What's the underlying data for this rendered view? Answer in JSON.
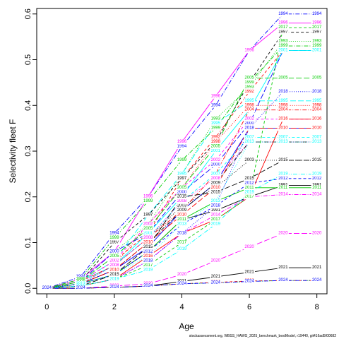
{
  "chart_data": {
    "type": "line",
    "title": "",
    "xlabel": "Age",
    "ylabel": "Selectivity fleet F",
    "xlim": [
      -0.3,
      8.3
    ],
    "ylim": [
      -0.012,
      0.612
    ],
    "xticks": [
      0,
      2,
      4,
      6,
      8
    ],
    "yticks": [
      0.0,
      0.1,
      0.2,
      0.3,
      0.4,
      0.5,
      0.6
    ],
    "ytick_labels": [
      "0.0",
      "0.1",
      "0.2",
      "0.3",
      "0.4",
      "0.5",
      "0.6"
    ],
    "caption": "stockassessment.org, WBSS_HAWG_2025_benchmark_bestModel, r19440, git416ad5f00682",
    "x": [
      0,
      1,
      2,
      3,
      4,
      5,
      6,
      7,
      8
    ],
    "series": [
      {
        "label": "1991",
        "color": "#000000",
        "dash": "",
        "values": [
          0.0,
          0.01,
          0.03,
          0.08,
          0.15,
          0.17,
          0.2,
          0.225,
          0.225
        ]
      },
      {
        "label": "1992",
        "color": "#ff0000",
        "dash": "4,3",
        "values": [
          0.0,
          0.015,
          0.06,
          0.12,
          0.24,
          0.33,
          0.43,
          0.52,
          0.52
        ]
      },
      {
        "label": "1993",
        "color": "#00cc00",
        "dash": "1,2",
        "values": [
          0.0,
          0.02,
          0.08,
          0.14,
          0.25,
          0.37,
          0.44,
          0.54,
          0.54
        ]
      },
      {
        "label": "1994",
        "color": "#0000ff",
        "dash": "6,2,1,2",
        "values": [
          0.0,
          0.025,
          0.12,
          0.2,
          0.31,
          0.4,
          0.52,
          0.6,
          0.6
        ]
      },
      {
        "label": "1995",
        "color": "#00ffff",
        "dash": "8,3",
        "values": [
          0.0,
          0.015,
          0.06,
          0.16,
          0.25,
          0.36,
          0.41,
          0.41,
          0.41
        ]
      },
      {
        "label": "1996",
        "color": "#ff00ff",
        "dash": "",
        "values": [
          0.0,
          0.02,
          0.08,
          0.2,
          0.32,
          0.42,
          0.52,
          0.58,
          0.58
        ]
      },
      {
        "label": "1997",
        "color": "#000000",
        "dash": "4,3",
        "values": [
          0.0,
          0.015,
          0.1,
          0.16,
          0.24,
          0.32,
          0.45,
          0.56,
          0.56
        ]
      },
      {
        "label": "1998",
        "color": "#ff0000",
        "dash": "1,2",
        "values": [
          0.0,
          0.015,
          0.05,
          0.14,
          0.22,
          0.32,
          0.4,
          0.4,
          0.4
        ]
      },
      {
        "label": "1999",
        "color": "#00cc00",
        "dash": "6,2,1,2",
        "values": [
          0.0,
          0.02,
          0.11,
          0.19,
          0.28,
          0.35,
          0.45,
          0.53,
          0.53
        ]
      },
      {
        "label": "2000",
        "color": "#0000ff",
        "dash": "8,3",
        "values": [
          0.0,
          0.015,
          0.08,
          0.12,
          0.21,
          0.27,
          0.36,
          0.52,
          0.52
        ]
      },
      {
        "label": "2001",
        "color": "#00ffff",
        "dash": "",
        "values": [
          0.0,
          0.015,
          0.05,
          0.12,
          0.2,
          0.3,
          0.39,
          0.52,
          0.52
        ]
      },
      {
        "label": "2002",
        "color": "#ff00ff",
        "dash": "4,3",
        "values": [
          0.0,
          0.015,
          0.06,
          0.14,
          0.22,
          0.28,
          0.37,
          0.37,
          0.37
        ]
      },
      {
        "label": "2003",
        "color": "#000000",
        "dash": "1,2",
        "values": [
          0.0,
          0.01,
          0.05,
          0.11,
          0.18,
          0.22,
          0.28,
          0.28,
          0.28
        ]
      },
      {
        "label": "2004",
        "color": "#ff0000",
        "dash": "6,2,1,2",
        "values": [
          0.0,
          0.015,
          0.05,
          0.11,
          0.17,
          0.25,
          0.39,
          0.39,
          0.39
        ]
      },
      {
        "label": "2005",
        "color": "#00cc00",
        "dash": "8,3",
        "values": [
          0.0,
          0.015,
          0.07,
          0.13,
          0.22,
          0.31,
          0.46,
          0.46,
          0.46
        ]
      },
      {
        "label": "2006",
        "color": "#0000ff",
        "dash": "",
        "values": [
          0.0,
          0.01,
          0.04,
          0.09,
          0.17,
          0.23,
          0.35,
          0.35,
          0.35
        ]
      },
      {
        "label": "2007",
        "color": "#00ffff",
        "dash": "4,3",
        "values": [
          0.0,
          0.01,
          0.05,
          0.11,
          0.19,
          0.25,
          0.33,
          0.33,
          0.33
        ]
      },
      {
        "label": "2008",
        "color": "#ff00ff",
        "dash": "1,2",
        "values": [
          0.0,
          0.01,
          0.05,
          0.11,
          0.19,
          0.24,
          0.32,
          0.32,
          0.32
        ]
      },
      {
        "label": "2009",
        "color": "#000000",
        "dash": "6,2,1,2",
        "values": [
          0.0,
          0.01,
          0.04,
          0.1,
          0.17,
          0.23,
          0.32,
          0.32,
          0.32
        ]
      },
      {
        "label": "2010",
        "color": "#ff0000",
        "dash": "8,3",
        "values": [
          0.0,
          0.01,
          0.04,
          0.1,
          0.16,
          0.22,
          0.35,
          0.35,
          0.35
        ]
      },
      {
        "label": "2011",
        "color": "#00cc00",
        "dash": "",
        "values": [
          0.0,
          0.01,
          0.03,
          0.08,
          0.15,
          0.19,
          0.22,
          0.22,
          0.22
        ]
      },
      {
        "label": "2012",
        "color": "#0000ff",
        "dash": "4,3",
        "values": [
          0.0,
          0.01,
          0.03,
          0.08,
          0.14,
          0.18,
          0.23,
          0.24,
          0.24
        ]
      },
      {
        "label": "2013",
        "color": "#00ffff",
        "dash": "1,2",
        "values": [
          0.0,
          0.01,
          0.03,
          0.07,
          0.14,
          0.19,
          0.32,
          0.32,
          0.32
        ]
      },
      {
        "label": "2014",
        "color": "#ff00ff",
        "dash": "6,2,1,2",
        "values": [
          0.0,
          0.005,
          0.02,
          0.06,
          0.12,
          0.16,
          0.2,
          0.205,
          0.205
        ]
      },
      {
        "label": "2015",
        "color": "#000000",
        "dash": "8,3",
        "values": [
          0.0,
          0.005,
          0.03,
          0.09,
          0.2,
          0.21,
          0.24,
          0.28,
          0.28
        ]
      },
      {
        "label": "2016",
        "color": "#ff0000",
        "dash": "",
        "values": [
          0.0,
          0.005,
          0.02,
          0.07,
          0.12,
          0.15,
          0.2,
          0.37,
          0.37
        ]
      },
      {
        "label": "2017",
        "color": "#00cc00",
        "dash": "4,3",
        "values": [
          0.0,
          0.005,
          0.02,
          0.05,
          0.1,
          0.15,
          0.2,
          0.57,
          0.57
        ]
      },
      {
        "label": "2018",
        "color": "#0000ff",
        "dash": "1,2",
        "values": [
          0.0,
          0.005,
          0.02,
          0.06,
          0.12,
          0.18,
          0.35,
          0.43,
          0.43
        ]
      },
      {
        "label": "2019",
        "color": "#00ffff",
        "dash": "6,2,1,2",
        "values": [
          0.0,
          0.005,
          0.02,
          0.04,
          0.085,
          0.14,
          0.21,
          0.25,
          0.25
        ]
      },
      {
        "label": "2020",
        "color": "#ff00ff",
        "dash": "8,3",
        "values": [
          0.0,
          0.0,
          0.005,
          0.01,
          0.03,
          0.06,
          0.09,
          0.12,
          0.12
        ]
      },
      {
        "label": "2021",
        "color": "#000000",
        "dash": "",
        "values": [
          0.0,
          0.0,
          0.002,
          0.005,
          0.015,
          0.025,
          0.035,
          0.045,
          0.045
        ]
      },
      {
        "label": "2022",
        "color": "#ff0000",
        "dash": "4,3",
        "values": [
          0.0,
          0.0,
          0.002,
          0.005,
          0.01,
          0.013,
          0.016,
          0.017,
          0.017
        ]
      },
      {
        "label": "2023",
        "color": "#00cc00",
        "dash": "1,2",
        "values": [
          0.0,
          0.0,
          0.002,
          0.005,
          0.01,
          0.012,
          0.015,
          0.017,
          0.017
        ]
      },
      {
        "label": "2024",
        "color": "#0000ff",
        "dash": "6,2,1,2",
        "values": [
          0.0,
          0.0,
          0.002,
          0.005,
          0.01,
          0.012,
          0.015,
          0.017,
          0.017
        ]
      }
    ]
  }
}
